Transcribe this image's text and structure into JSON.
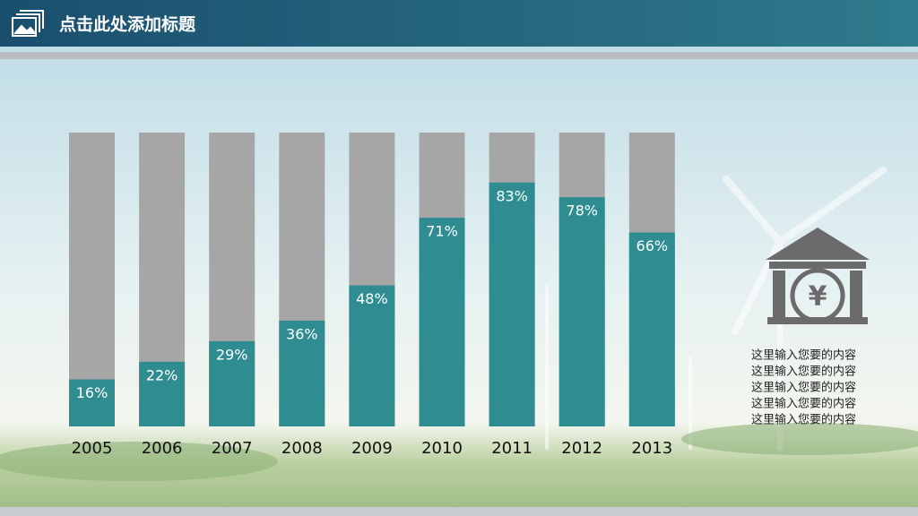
{
  "chart_data": {
    "type": "bar",
    "title": "点击此处添加标题",
    "categories": [
      "2005",
      "2006",
      "2007",
      "2008",
      "2009",
      "2010",
      "2011",
      "2012",
      "2013"
    ],
    "values": [
      16,
      22,
      29,
      36,
      48,
      71,
      83,
      78,
      66
    ],
    "value_labels": [
      "16%",
      "22%",
      "29%",
      "36%",
      "48%",
      "71%",
      "83%",
      "78%",
      "66%"
    ],
    "color": "#2f8c91",
    "track_color": "#a6a6a6",
    "ylim": [
      0,
      100
    ],
    "annotations": [
      "这里输入您要的内容",
      "这里输入您要的内容",
      "这里输入您要的内容",
      "这里输入您要的内容",
      "这里输入您要的内容"
    ]
  }
}
